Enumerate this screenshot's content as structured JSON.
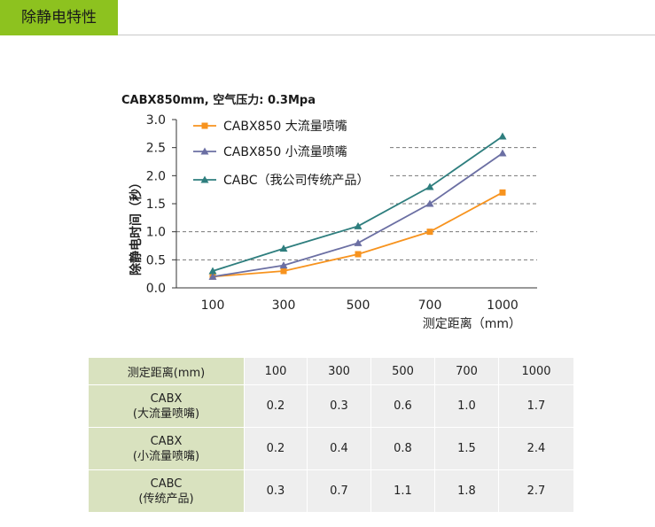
{
  "section_title": "除静电特性",
  "chart_data": {
    "type": "line",
    "title": "CABX850mm, 空气压力: 0.3Mpa",
    "xlabel": "测定距离（mm）",
    "ylabel": "除静电时间（秒）",
    "categories": [
      "100",
      "300",
      "500",
      "700",
      "1000"
    ],
    "ylim": [
      0,
      3.0
    ],
    "yticks": [
      "0.0",
      "0.5",
      "1.0",
      "1.5",
      "2.0",
      "2.5",
      "3.0"
    ],
    "grid": "horizontal dashed",
    "legend_position": "top-left",
    "series": [
      {
        "name": "CABX850 大流量喷嘴",
        "values": [
          0.2,
          0.3,
          0.6,
          1.0,
          1.7
        ],
        "color": "#f7931e",
        "marker": "square"
      },
      {
        "name": "CABX850 小流量喷嘴",
        "values": [
          0.2,
          0.4,
          0.8,
          1.5,
          2.4
        ],
        "color": "#6b6fa3",
        "marker": "triangle"
      },
      {
        "name": "CABC（我公司传统产品）",
        "values": [
          0.3,
          0.7,
          1.1,
          1.8,
          2.7
        ],
        "color": "#2e7e7e",
        "marker": "triangle"
      }
    ]
  },
  "table": {
    "header_label": "测定距离(mm)",
    "columns": [
      "100",
      "300",
      "500",
      "700",
      "1000"
    ],
    "rows": [
      {
        "label_1": "CABX",
        "label_2": "(大流量喷嘴)",
        "values": [
          "0.2",
          "0.3",
          "0.6",
          "1.0",
          "1.7"
        ]
      },
      {
        "label_1": "CABX",
        "label_2": "(小流量喷嘴)",
        "values": [
          "0.2",
          "0.4",
          "0.8",
          "1.5",
          "2.4"
        ]
      },
      {
        "label_1": "CABC",
        "label_2": "(传统产品)",
        "values": [
          "0.3",
          "0.7",
          "1.1",
          "1.8",
          "2.7"
        ]
      }
    ]
  }
}
